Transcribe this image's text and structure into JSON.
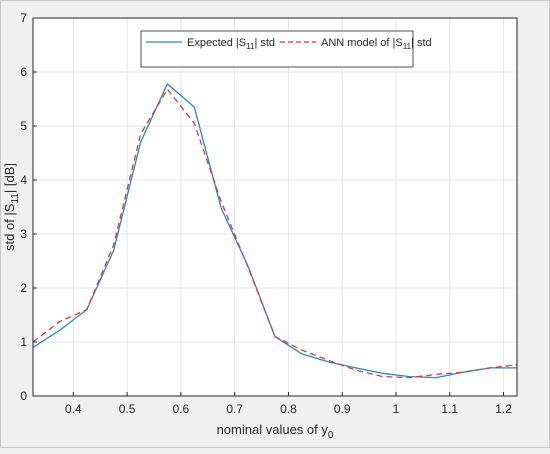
{
  "chart_data": {
    "type": "line",
    "xlabel": "nominal values of y",
    "xlabel_sub": "0",
    "ylabel": "std of |S",
    "ylabel_sub": "11",
    "ylabel_tail": "| [dB]",
    "xlim": [
      0.325,
      1.225
    ],
    "ylim": [
      0,
      7
    ],
    "x_ticks": [
      0.4,
      0.5,
      0.6,
      0.7,
      0.8,
      0.9,
      1,
      1.1,
      1.2
    ],
    "x_tick_labels": [
      "0.4",
      "0.5",
      "0.6",
      "0.7",
      "0.8",
      "0.9",
      "1",
      "1.1",
      "1.2"
    ],
    "y_ticks": [
      0,
      1,
      2,
      3,
      4,
      5,
      6,
      7
    ],
    "y_tick_labels": [
      "0",
      "1",
      "2",
      "3",
      "4",
      "5",
      "6",
      "7"
    ],
    "grid": true,
    "legend_position": "top-center",
    "series": [
      {
        "name": "Expected |S11| std",
        "legend_parts": [
          "Expected |S",
          "11",
          "| std"
        ],
        "color": "#2f86c0",
        "style": "solid",
        "x": [
          0.325,
          0.375,
          0.425,
          0.475,
          0.525,
          0.575,
          0.625,
          0.675,
          0.725,
          0.775,
          0.825,
          0.875,
          0.925,
          0.975,
          1.025,
          1.075,
          1.125,
          1.175,
          1.225
        ],
        "y": [
          0.9,
          1.22,
          1.6,
          2.7,
          4.7,
          5.78,
          5.35,
          3.48,
          2.4,
          1.1,
          0.78,
          0.63,
          0.52,
          0.42,
          0.36,
          0.34,
          0.44,
          0.52,
          0.52
        ]
      },
      {
        "name": "ANN model of |S11| std",
        "legend_parts": [
          "ANN model of |S",
          "11",
          "| std"
        ],
        "color": "#d63a3a",
        "style": "dashed",
        "x": [
          0.325,
          0.375,
          0.425,
          0.475,
          0.525,
          0.575,
          0.625,
          0.675,
          0.725,
          0.775,
          0.825,
          0.875,
          0.925,
          0.975,
          1.025,
          1.075,
          1.125,
          1.175,
          1.225
        ],
        "y": [
          1.0,
          1.38,
          1.6,
          2.8,
          4.85,
          5.68,
          5.05,
          3.6,
          2.38,
          1.1,
          0.85,
          0.66,
          0.48,
          0.36,
          0.34,
          0.4,
          0.44,
          0.52,
          0.58
        ]
      }
    ]
  }
}
